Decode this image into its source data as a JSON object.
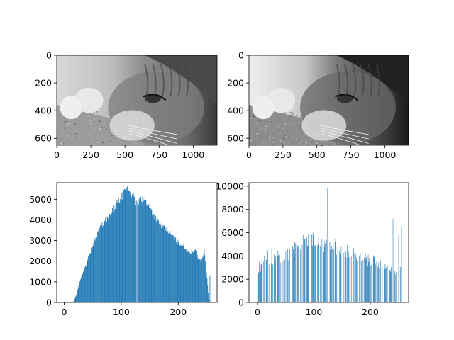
{
  "chart_data": [
    {
      "type": "image",
      "content": "grayscale-cat-photo",
      "xlim": [
        0,
        1175
      ],
      "ylim_inverted": [
        650,
        0
      ],
      "xticks": [
        0,
        250,
        500,
        750,
        1000
      ],
      "yticks": [
        0,
        200,
        400,
        600
      ]
    },
    {
      "type": "image",
      "content": "grayscale-cat-photo-equalized",
      "xlim": [
        0,
        1175
      ],
      "ylim_inverted": [
        650,
        0
      ],
      "xticks": [
        0,
        250,
        500,
        750,
        1000
      ],
      "yticks": [
        0,
        200,
        400,
        600
      ]
    },
    {
      "type": "bar",
      "kind": "histogram",
      "color": "#1f77b4",
      "xlim": [
        -13,
        268
      ],
      "ylim": [
        0,
        5800
      ],
      "xticks": [
        0,
        100,
        200
      ],
      "yticks": [
        0,
        1000,
        2000,
        3000,
        4000,
        5000
      ],
      "profile": [
        [
          0,
          0
        ],
        [
          12,
          0
        ],
        [
          16,
          50
        ],
        [
          20,
          300
        ],
        [
          25,
          800
        ],
        [
          30,
          1300
        ],
        [
          40,
          2000
        ],
        [
          50,
          2800
        ],
        [
          60,
          3500
        ],
        [
          70,
          3900
        ],
        [
          80,
          4200
        ],
        [
          90,
          4700
        ],
        [
          100,
          5100
        ],
        [
          110,
          5500
        ],
        [
          115,
          5400
        ],
        [
          120,
          5200
        ],
        [
          125,
          4800
        ],
        [
          130,
          4900
        ],
        [
          140,
          5000
        ],
        [
          150,
          4600
        ],
        [
          160,
          4100
        ],
        [
          170,
          3700
        ],
        [
          180,
          3500
        ],
        [
          190,
          3200
        ],
        [
          200,
          2900
        ],
        [
          210,
          2700
        ],
        [
          220,
          2400
        ],
        [
          230,
          2600
        ],
        [
          235,
          2100
        ],
        [
          240,
          2000
        ],
        [
          245,
          2500
        ],
        [
          248,
          1800
        ],
        [
          252,
          500
        ],
        [
          254,
          100
        ],
        [
          255,
          1300
        ]
      ]
    },
    {
      "type": "bar",
      "kind": "histogram",
      "color": "#1f77b4",
      "xlim": [
        -15,
        268
      ],
      "ylim": [
        0,
        10300
      ],
      "xticks": [
        0,
        100,
        200
      ],
      "yticks": [
        0,
        2000,
        4000,
        6000,
        8000,
        10000
      ],
      "profile": [
        [
          0,
          2200
        ],
        [
          5,
          2800
        ],
        [
          10,
          3200
        ],
        [
          20,
          3600
        ],
        [
          30,
          3800
        ],
        [
          40,
          4000
        ],
        [
          50,
          4100
        ],
        [
          60,
          4300
        ],
        [
          70,
          4800
        ],
        [
          80,
          5200
        ],
        [
          90,
          5300
        ],
        [
          100,
          5300
        ],
        [
          110,
          5100
        ],
        [
          120,
          4900
        ],
        [
          130,
          4900
        ],
        [
          140,
          4800
        ],
        [
          150,
          4600
        ],
        [
          160,
          4400
        ],
        [
          170,
          4100
        ],
        [
          180,
          3900
        ],
        [
          190,
          3700
        ],
        [
          200,
          3600
        ],
        [
          210,
          3500
        ],
        [
          220,
          3200
        ],
        [
          230,
          3000
        ],
        [
          240,
          2700
        ],
        [
          250,
          2600
        ],
        [
          255,
          3800
        ]
      ],
      "spikes": [
        [
          3,
          3500
        ],
        [
          12,
          4000
        ],
        [
          18,
          4500
        ],
        [
          25,
          4700
        ],
        [
          124,
          9800
        ],
        [
          224,
          5800
        ],
        [
          240,
          7200
        ],
        [
          250,
          5800
        ],
        [
          255,
          6500
        ]
      ]
    }
  ]
}
